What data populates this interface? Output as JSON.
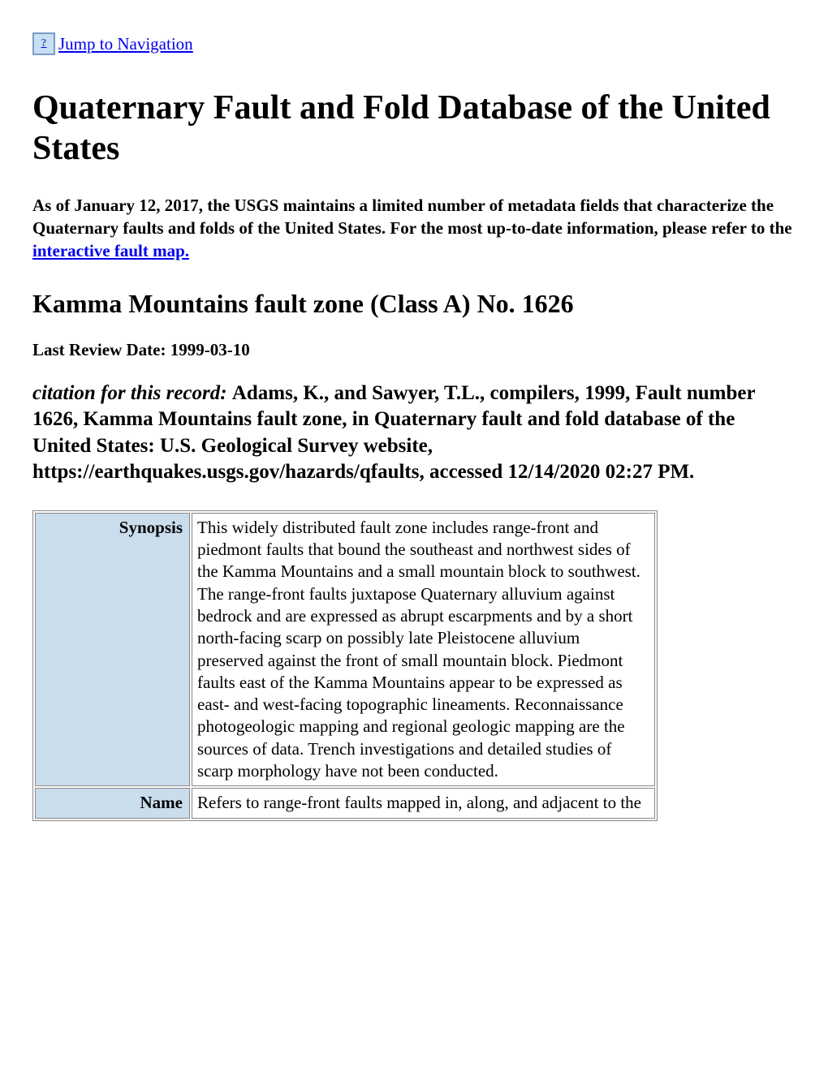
{
  "skip_link": {
    "icon_text": "?",
    "text": "Jump to Navigation"
  },
  "page_title": "Quaternary Fault and Fold Database of the United States",
  "notice": {
    "prefix": "As of January 12, 2017, the USGS maintains a limited number of metadata fields that characterize the Quaternary faults and folds of the United States. For the most up-to-date information, please refer to the ",
    "link_text": "interactive fault map."
  },
  "fault_heading": "Kamma Mountains fault zone (Class A) No. 1626",
  "review_date_label": "Last Review Date: ",
  "review_date_value": "1999-03-10",
  "citation": {
    "label": "citation for this record: ",
    "text": "Adams, K., and Sawyer, T.L., compilers, 1999, Fault number 1626, Kamma Mountains fault zone, in Quaternary fault and fold database of the United States: U.S. Geological Survey website, https://earthquakes.usgs.gov/hazards/qfaults, accessed 12/14/2020 02:27 PM."
  },
  "table": {
    "rows": [
      {
        "label": "Synopsis",
        "value": "This widely distributed fault zone includes range-front and piedmont faults that bound the southeast and northwest sides of the Kamma Mountains and a small mountain block to southwest. The range-front faults juxtapose Quaternary alluvium against bedrock and are expressed as abrupt escarpments and by a short north-facing scarp on possibly late Pleistocene alluvium preserved against the front of small mountain block. Piedmont faults east of the Kamma Mountains appear to be expressed as east- and west-facing topographic lineaments. Reconnaissance photogeologic mapping and regional geologic mapping are the sources of data. Trench investigations and detailed studies of scarp morphology have not been conducted."
      },
      {
        "label": "Name",
        "value": "Refers to range-front faults mapped in, along, and adjacent to the"
      }
    ]
  },
  "colors": {
    "link": "#0000ee",
    "table_header_bg": "#cadded",
    "table_border": "#888888",
    "icon_border": "#7a9cc6",
    "icon_bg": "#c8dff5"
  }
}
